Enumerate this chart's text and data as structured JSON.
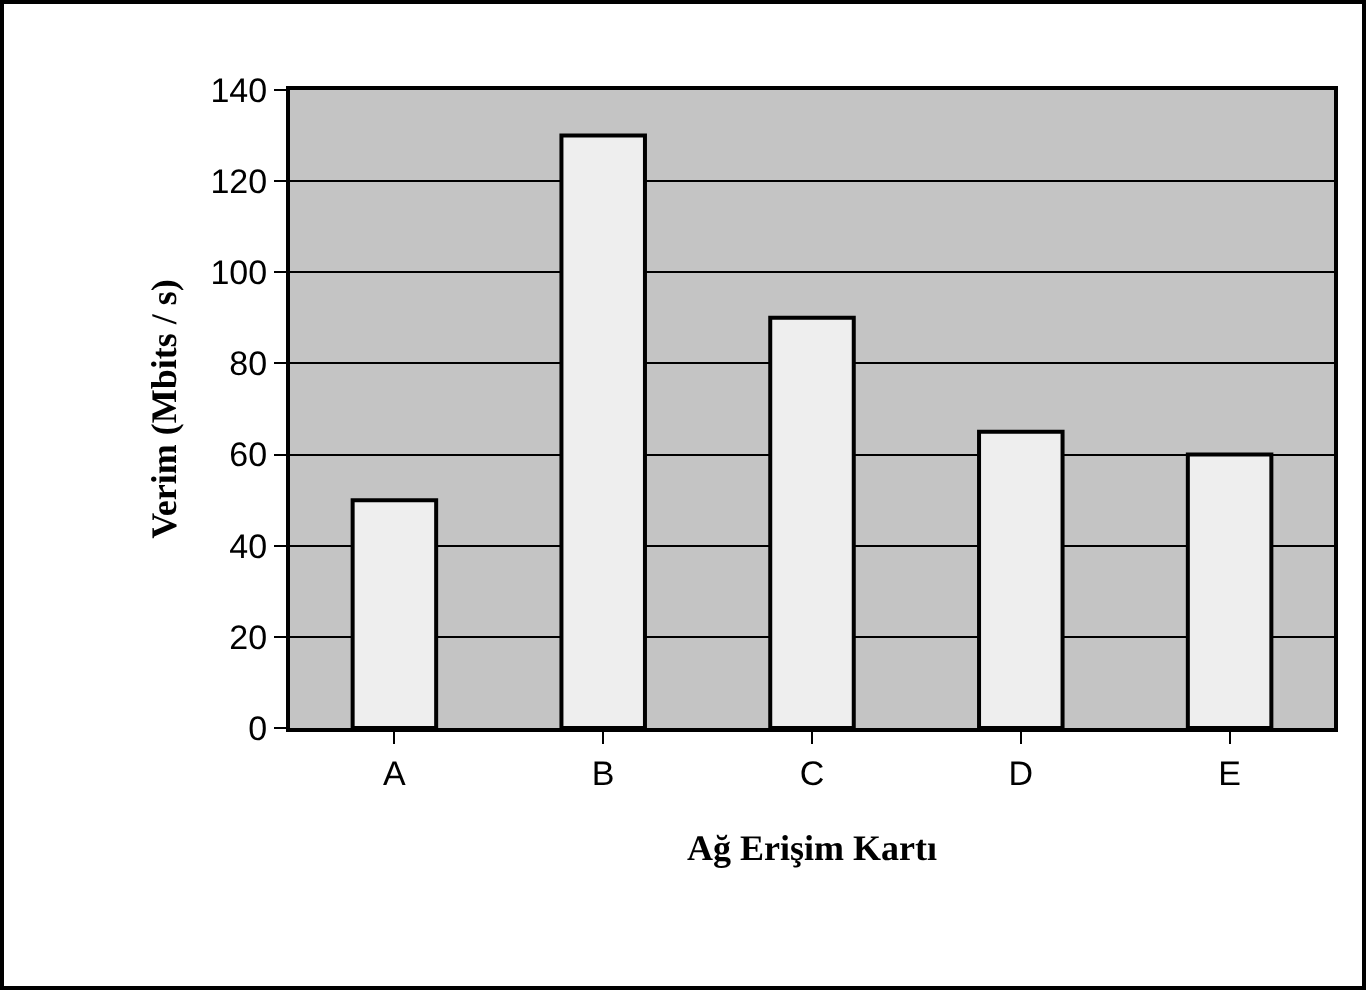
{
  "chart_data": {
    "type": "bar",
    "xlabel": "Ağ Erişim Kartı",
    "ylabel": "Verim (Mbits / s)",
    "categories": [
      "A",
      "B",
      "C",
      "D",
      "E"
    ],
    "values": [
      50,
      130,
      90,
      65,
      60
    ],
    "color": "#eeeeee",
    "ylim": [
      0,
      140
    ],
    "yticks": [
      0,
      20,
      40,
      60,
      80,
      100,
      120,
      140
    ],
    "grid": "y"
  }
}
